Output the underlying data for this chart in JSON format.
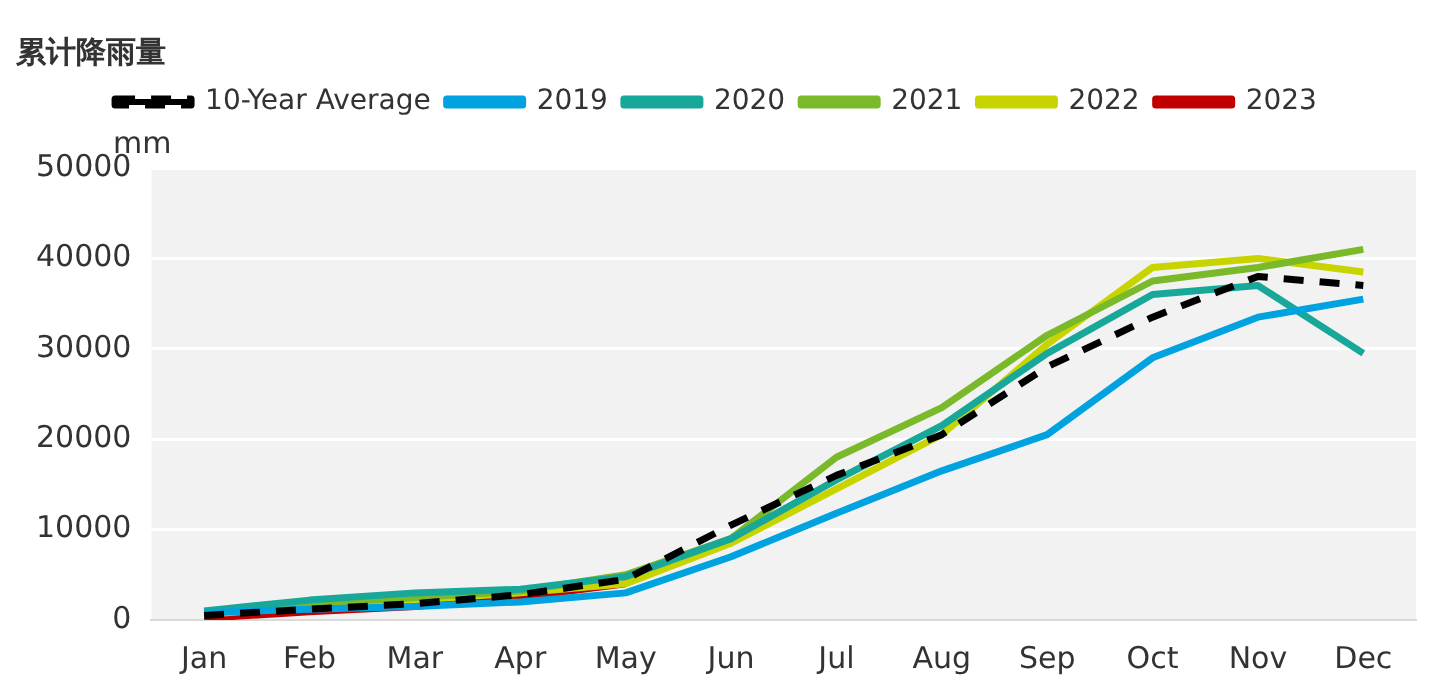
{
  "chart_data": {
    "type": "line",
    "title": "累计降雨量",
    "ylabel": "mm",
    "categories": [
      "Jan",
      "Feb",
      "Mar",
      "Apr",
      "May",
      "Jun",
      "Jul",
      "Aug",
      "Sep",
      "Oct",
      "Nov",
      "Dec"
    ],
    "ylim": [
      0,
      50000
    ],
    "yticks": [
      0,
      10000,
      20000,
      30000,
      40000,
      50000
    ],
    "grid": "y",
    "legend": "top",
    "marker": "none",
    "series": [
      {
        "name": "10-Year Average",
        "color": "#000000",
        "line_style": "dashed",
        "values": [
          500,
          1200,
          1800,
          2800,
          4500,
          10500,
          16000,
          20500,
          28000,
          33500,
          38000,
          37000
        ]
      },
      {
        "name": "2019",
        "color": "#00a3e0",
        "values": [
          800,
          1200,
          1500,
          2000,
          3000,
          7000,
          11800,
          16500,
          20500,
          29000,
          33500,
          35500
        ]
      },
      {
        "name": "2020",
        "color": "#17a89a",
        "values": [
          1000,
          2200,
          3000,
          3400,
          4800,
          9000,
          15500,
          21500,
          29500,
          36000,
          37000,
          29500
        ]
      },
      {
        "name": "2021",
        "color": "#7ab929",
        "values": [
          800,
          1800,
          2500,
          3200,
          5000,
          9000,
          18000,
          23500,
          31500,
          37500,
          39000,
          41000
        ]
      },
      {
        "name": "2022",
        "color": "#c8d400",
        "values": [
          600,
          1500,
          2200,
          3000,
          4000,
          8500,
          14500,
          20500,
          30500,
          39000,
          40000,
          38500
        ]
      },
      {
        "name": "2023",
        "color": "#c00000",
        "values": [
          200,
          900,
          1500,
          2500,
          4000,
          null,
          null,
          null,
          null,
          null,
          null,
          null
        ]
      }
    ]
  }
}
